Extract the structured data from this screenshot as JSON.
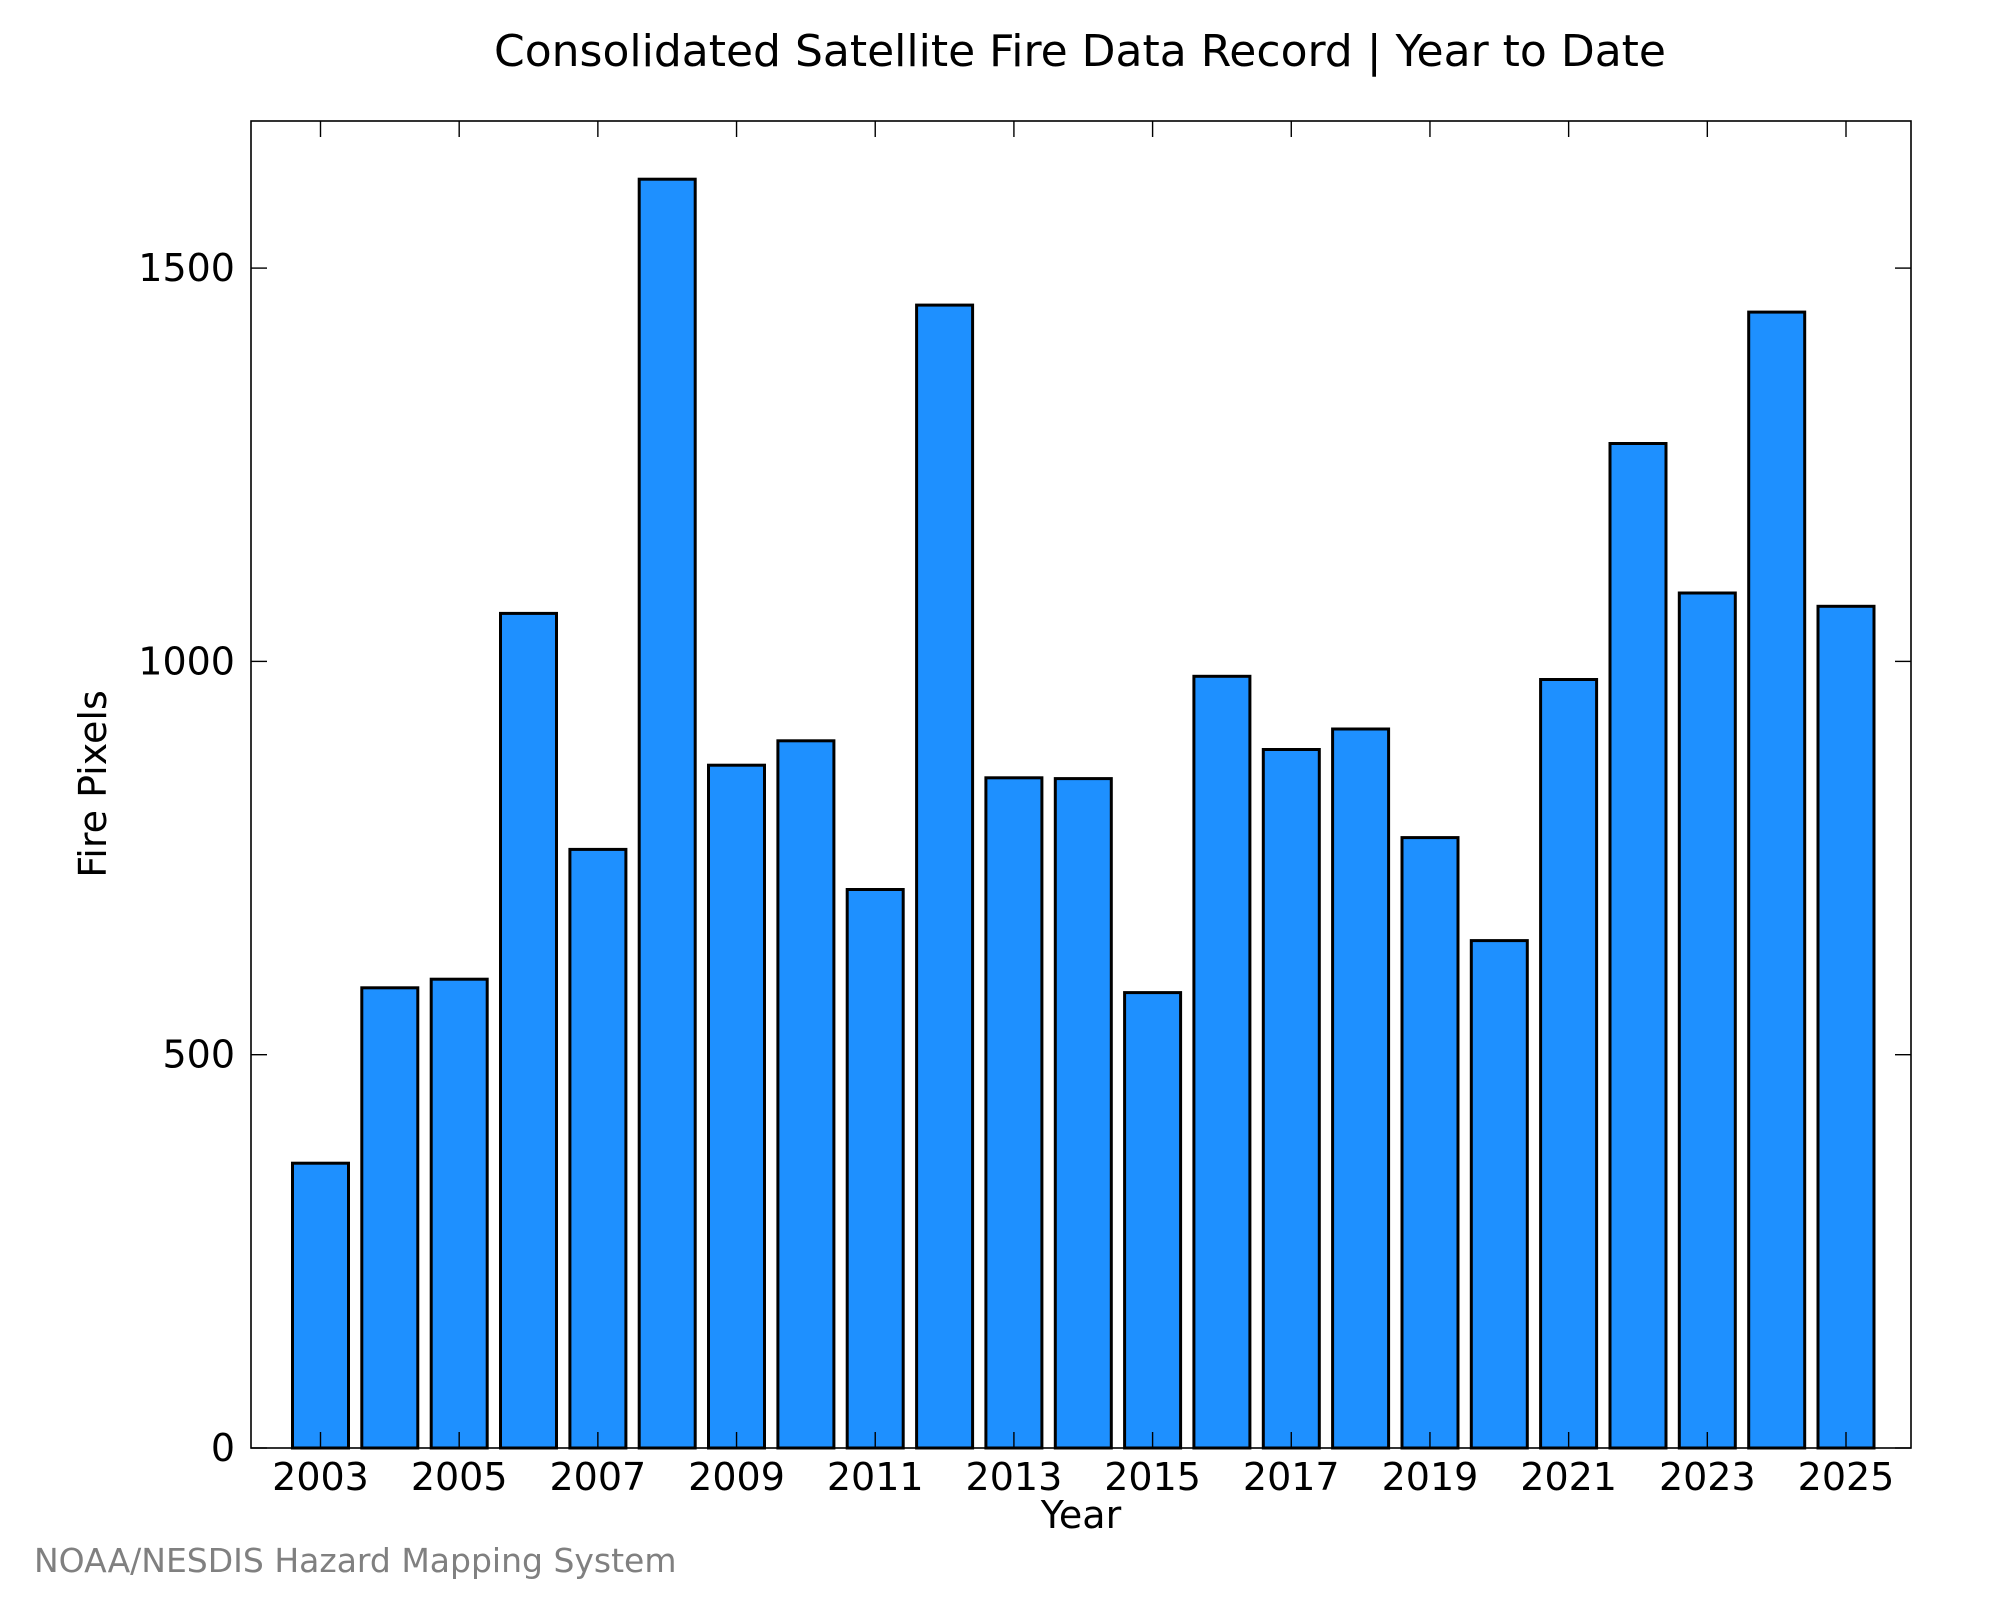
{
  "chart_data": {
    "type": "bar",
    "title": "Consolidated Satellite Fire Data Record | Year to Date",
    "xlabel": "Year",
    "ylabel": "Fire Pixels",
    "categories": [
      "2003",
      "2004",
      "2005",
      "2006",
      "2007",
      "2008",
      "2009",
      "2010",
      "2011",
      "2012",
      "2013",
      "2014",
      "2015",
      "2016",
      "2017",
      "2018",
      "2019",
      "2020",
      "2021",
      "2022",
      "2023",
      "2024",
      "2025"
    ],
    "values": [
      362,
      585,
      596,
      1061,
      761,
      1613,
      868,
      899,
      710,
      1453,
      852,
      851,
      579,
      981,
      888,
      914,
      776,
      645,
      977,
      1277,
      1087,
      1444,
      1070
    ],
    "x_tick_labels": [
      "2003",
      "2005",
      "2007",
      "2009",
      "2011",
      "2013",
      "2015",
      "2017",
      "2019",
      "2021",
      "2023",
      "2025"
    ],
    "y_ticks": [
      0,
      500,
      1000,
      1500
    ],
    "ylim": [
      0,
      1687
    ],
    "grid": false,
    "bar_color": "#1e90ff",
    "credit": "NOAA/NESDIS Hazard Mapping System"
  }
}
